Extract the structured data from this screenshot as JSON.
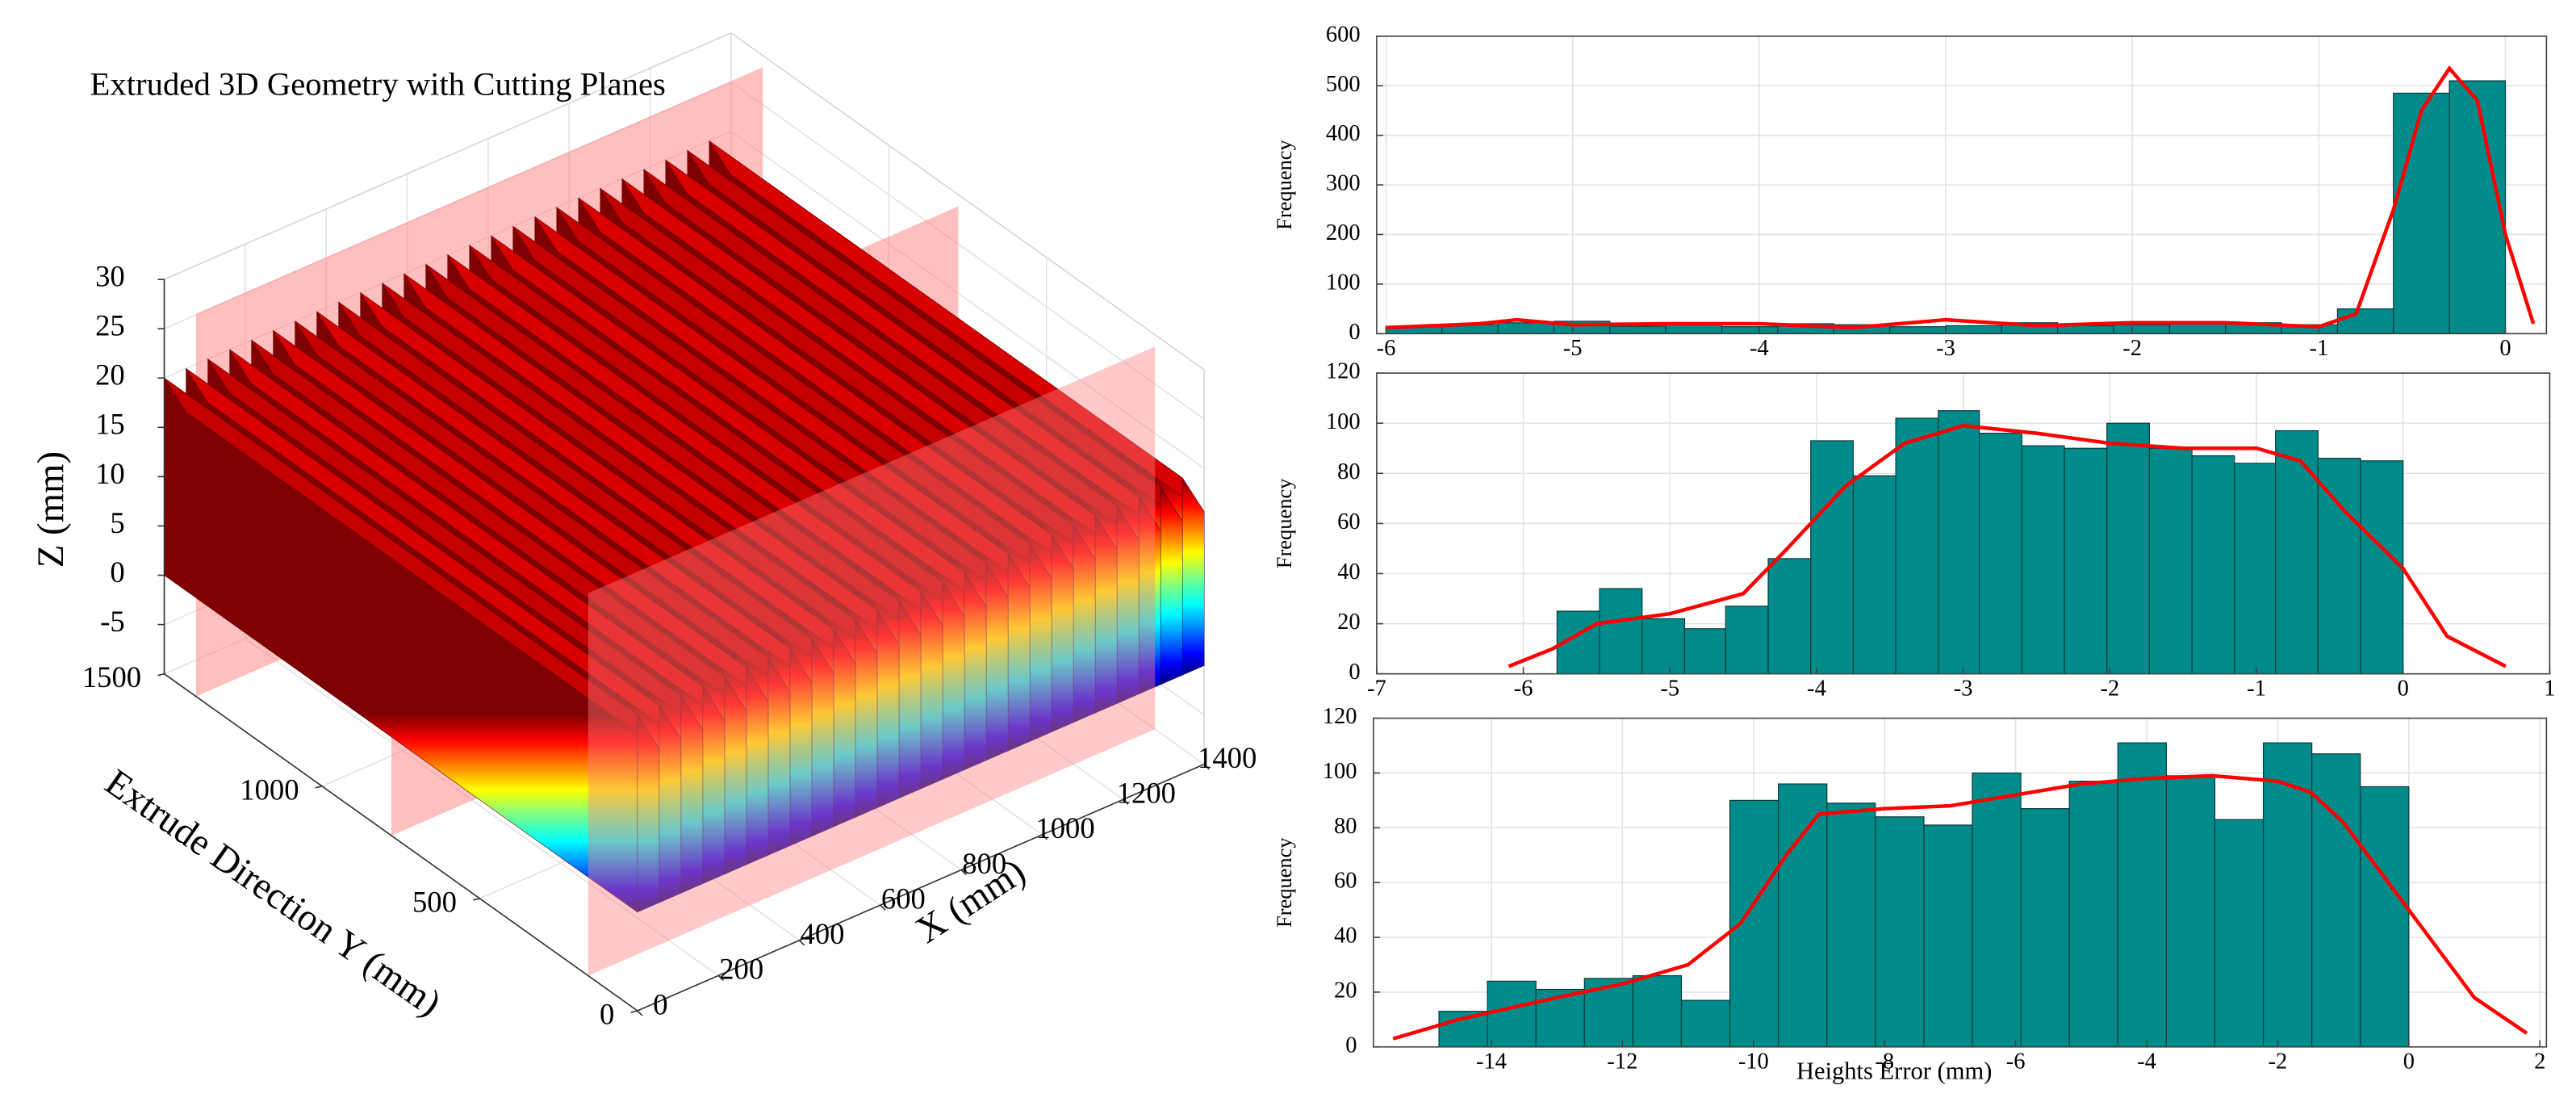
{
  "chart_data": [
    {
      "type": "surface3d",
      "title": "Extruded 3D Geometry with Cutting Planes",
      "xlabel": "X (mm)",
      "ylabel": "Extrude Direction Y (mm)",
      "zlabel": "Z (mm)",
      "xlim": [
        0,
        1400
      ],
      "ylim": [
        0,
        1500
      ],
      "zlim": [
        -10,
        30
      ],
      "xticks": [
        0,
        200,
        400,
        600,
        800,
        1000,
        1200,
        1400
      ],
      "yticks": [
        0,
        500,
        1000,
        1500
      ],
      "zticks": [
        -5,
        0,
        5,
        10,
        15,
        20,
        25,
        30
      ],
      "grid": true
    },
    {
      "type": "histogram",
      "ylabel": "Frequency",
      "color": "#008b8b",
      "bins": [
        -6,
        -5.7,
        -5.4,
        -5.1,
        -4.8,
        -4.5,
        -4.2,
        -3.9,
        -3.6,
        -3.3,
        -3,
        -2.7,
        -2.4,
        -2.1,
        -1.8,
        -1.5,
        -1.2,
        -0.9,
        -0.6,
        -0.3,
        0
      ],
      "counts": [
        15,
        18,
        22,
        25,
        15,
        18,
        14,
        20,
        18,
        14,
        16,
        22,
        16,
        18,
        20,
        22,
        18,
        50,
        485,
        510
      ],
      "kde": {
        "color": "#ff0000",
        "x": [
          -6.0,
          -5.5,
          -5.3,
          -5.0,
          -4.5,
          -4.0,
          -3.5,
          -3.0,
          -2.5,
          -2.0,
          -1.5,
          -1.0,
          -0.8,
          -0.6,
          -0.45,
          -0.3,
          -0.15,
          0.0,
          0.15
        ],
        "values": [
          12,
          20,
          28,
          18,
          20,
          20,
          12,
          28,
          16,
          22,
          22,
          14,
          40,
          250,
          450,
          535,
          470,
          200,
          20
        ]
      },
      "xlim": [
        -6.05,
        0.22
      ],
      "ylim": [
        0,
        600
      ],
      "xticks": [
        -6,
        -5,
        -4,
        -3,
        -2,
        -1,
        0
      ],
      "yticks": [
        0,
        100,
        200,
        300,
        400,
        500,
        600
      ],
      "grid": true
    },
    {
      "type": "histogram",
      "ylabel": "Frequency",
      "color": "#008b8b",
      "bins": [
        -5.77,
        -5.48,
        -5.19,
        -4.9,
        -4.62,
        -4.33,
        -4.04,
        -3.75,
        -3.46,
        -3.17,
        -2.89,
        -2.6,
        -2.31,
        -2.02,
        -1.73,
        -1.44,
        -1.15,
        -0.87,
        -0.58,
        -0.29,
        0
      ],
      "counts": [
        25,
        34,
        22,
        18,
        27,
        46,
        93,
        79,
        102,
        105,
        96,
        91,
        90,
        100,
        90,
        87,
        84,
        97,
        86,
        85
      ],
      "kde": {
        "color": "#ff0000",
        "x": [
          -6.1,
          -5.8,
          -5.5,
          -5.0,
          -4.5,
          -4.2,
          -3.8,
          -3.4,
          -3.0,
          -2.5,
          -2.0,
          -1.5,
          -1.0,
          -0.7,
          -0.4,
          0.0,
          0.3,
          0.7
        ],
        "values": [
          3,
          10,
          20,
          24,
          32,
          50,
          75,
          92,
          99,
          96,
          92,
          90,
          90,
          85,
          65,
          42,
          15,
          3
        ]
      },
      "xlim": [
        -7,
        1
      ],
      "ylim": [
        0,
        120
      ],
      "xticks": [
        -7,
        -6,
        -5,
        -4,
        -3,
        -2,
        -1,
        0,
        1
      ],
      "yticks": [
        0,
        20,
        40,
        60,
        80,
        100,
        120
      ],
      "grid": true
    },
    {
      "type": "histogram",
      "ylabel": "Frequency",
      "xlabel": "Heights Error (mm)",
      "color": "#008b8b",
      "bins": [
        -14.8,
        -14.06,
        -13.32,
        -12.58,
        -11.84,
        -11.1,
        -10.36,
        -9.62,
        -8.88,
        -8.14,
        -7.4,
        -6.66,
        -5.92,
        -5.18,
        -4.44,
        -3.7,
        -2.96,
        -2.22,
        -1.48,
        -0.74,
        0
      ],
      "counts": [
        13,
        24,
        21,
        25,
        26,
        17,
        90,
        96,
        89,
        84,
        81,
        100,
        87,
        97,
        111,
        99,
        83,
        111,
        107,
        95
      ],
      "kde": {
        "color": "#ff0000",
        "x": [
          -15.5,
          -14.5,
          -13.0,
          -12.0,
          -11.0,
          -10.2,
          -9.5,
          -9.0,
          -8.0,
          -7.0,
          -6.0,
          -5.0,
          -4.0,
          -3.0,
          -2.0,
          -1.5,
          -1.0,
          0.0,
          1.0,
          1.8
        ],
        "values": [
          3,
          10,
          18,
          23,
          30,
          45,
          70,
          85,
          87,
          88,
          92,
          96,
          98,
          99,
          97,
          93,
          82,
          50,
          18,
          5
        ]
      },
      "xlim": [
        -15.8,
        2.1
      ],
      "ylim": [
        0,
        120
      ],
      "xticks": [
        -14,
        -12,
        -10,
        -8,
        -6,
        -4,
        -2,
        0,
        2
      ],
      "yticks": [
        0,
        20,
        40,
        60,
        80,
        100,
        120
      ],
      "grid": true
    }
  ]
}
